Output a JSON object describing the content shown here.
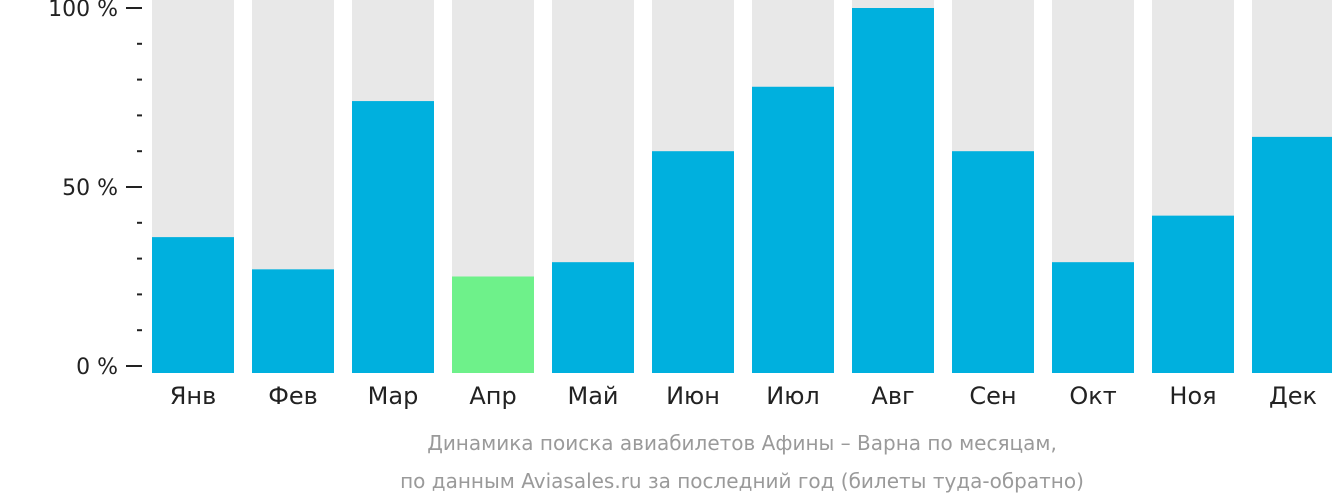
{
  "chart_data": {
    "type": "bar",
    "categories": [
      "Янв",
      "Фев",
      "Мар",
      "Апр",
      "Май",
      "Июн",
      "Июл",
      "Авг",
      "Сен",
      "Окт",
      "Ноя",
      "Дек"
    ],
    "values": [
      36,
      27,
      74,
      25,
      29,
      60,
      78,
      100,
      60,
      29,
      42,
      64
    ],
    "highlight_index": 3,
    "ylim": [
      0,
      100
    ],
    "yticks": [
      {
        "value": 0,
        "label": "0 %"
      },
      {
        "value": 50,
        "label": "50 %"
      },
      {
        "value": 100,
        "label": "100 %"
      }
    ],
    "minor_tick_step": 10,
    "xlabel": "",
    "ylabel": "",
    "grid": false,
    "caption": [
      "Динамика поиска авиабилетов Афины – Варна по месяцам,",
      "по данным Aviasales.ru за последний год (билеты туда-обратно)"
    ]
  },
  "colors": {
    "bar": "#00b0de",
    "highlight": "#6ef18a",
    "track": "#e8e8e8",
    "axis": "#222222",
    "caption": "#9a9a9a"
  }
}
